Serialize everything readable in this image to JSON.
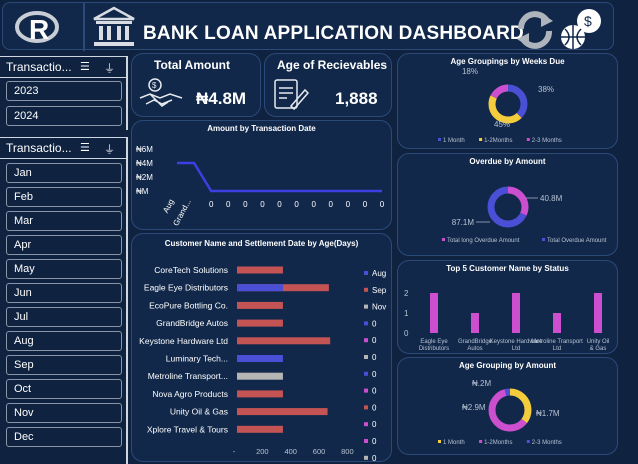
{
  "header": {
    "title": "BANK LOAN APPLICATION DASHBOARD"
  },
  "icons": {
    "r_logo": "r-logo-icon",
    "bank": "bank-icon",
    "refresh": "refresh-icon",
    "money": "money-globe-icon"
  },
  "year_slicer": {
    "title": "Transactio...",
    "items": [
      "2023",
      "2024"
    ]
  },
  "month_slicer": {
    "title": "Transactio...",
    "items": [
      "Jan",
      "Feb",
      "Mar",
      "Apr",
      "May",
      "Jun",
      "Jul",
      "Aug",
      "Sep",
      "Oct",
      "Nov",
      "Dec"
    ]
  },
  "kpi": {
    "total_amount": {
      "title": "Total Amount",
      "value": "₦4.8M"
    },
    "receivables": {
      "title": "Age of Recievables",
      "value": "1,888"
    }
  },
  "colors": {
    "blue": "#4a4fd6",
    "yellow": "#f5cc3c",
    "pink": "#cc4fcf",
    "red": "#c45454",
    "gray": "#b5b5b5",
    "line": "#3d3fe0"
  },
  "chart_data": [
    {
      "type": "pie",
      "title": "Age Groupings by Weeks Due",
      "categories": [
        "1 Month",
        "1-2Months",
        "2-3 Months"
      ],
      "values": [
        38,
        45,
        18
      ],
      "labels": [
        "38%",
        "45%",
        "18%"
      ]
    },
    {
      "type": "line",
      "title": "Amount by Transaction Date",
      "categories": [
        "Aug",
        "Grand...",
        "0",
        "0",
        "0",
        "0",
        "0",
        "0",
        "0",
        "0",
        "0",
        "0",
        "0"
      ],
      "values": [
        4,
        4,
        0,
        0,
        0,
        0,
        0,
        0,
        0,
        0,
        0,
        0,
        0
      ],
      "yticks": [
        "₦6M",
        "₦4M",
        "₦2M",
        "₦M"
      ],
      "ylim": [
        0,
        6
      ]
    },
    {
      "type": "pie",
      "title": "Overdue by Amount",
      "categories": [
        "Total long Overdue Amount",
        "Total Overdue Amount"
      ],
      "values": [
        40.8,
        87.1
      ],
      "labels": [
        "40.8M",
        "87.1M"
      ]
    },
    {
      "type": "bar",
      "title": "Customer Name and Settlement Date by Age(Days)",
      "categories": [
        "CoreTech Solutions",
        "Eagle Eye Distributors",
        "EcoPure Bottling Co.",
        "GrandBridge Autos",
        "Keystone Hardware Ltd",
        "Luminary Tech...",
        "Metroline Transport...",
        "Nova Agro Products",
        "Unity Oil & Gas",
        "Xplore Travel & Tours"
      ],
      "series": [
        {
          "name": "Aug",
          "values": [
            0,
            0,
            0,
            0,
            0,
            350,
            0,
            0,
            0,
            0
          ]
        },
        {
          "name": "Sep",
          "values": [
            350,
            700,
            350,
            350,
            710,
            0,
            0,
            350,
            690,
            350
          ]
        },
        {
          "name": "Nov",
          "values": [
            0,
            350,
            0,
            0,
            0,
            0,
            350,
            0,
            0,
            0
          ]
        }
      ],
      "legend": [
        "Aug",
        "Sep",
        "Nov",
        "0",
        "0",
        "0",
        "0",
        "0",
        "0",
        "0",
        "0",
        "0"
      ],
      "xticks": [
        "-",
        "200",
        "400",
        "600",
        "800"
      ],
      "xlim": [
        0,
        800
      ]
    },
    {
      "type": "bar",
      "title": "Top 5 Customer Name by Status",
      "categories": [
        "Eagle Eye Distributors",
        "GrandBridge Autos",
        "Keystone Hardware Ltd",
        "Metroline Transport Ltd",
        "Unity Oil & Gas"
      ],
      "values": [
        2,
        1,
        2,
        1,
        2
      ],
      "yticks": [
        "2",
        "1",
        "0"
      ],
      "ylim": [
        0,
        2.5
      ]
    },
    {
      "type": "pie",
      "title": "Age Grouping by Amount",
      "categories": [
        "1 Month",
        "1-2Months",
        "2-3 Months"
      ],
      "values": [
        1.7,
        2.9,
        0.2
      ],
      "labels": [
        "₦1.7M",
        "₦2.9M",
        "₦.2M"
      ]
    }
  ]
}
